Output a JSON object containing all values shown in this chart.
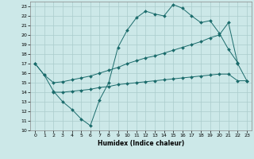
{
  "xlabel": "Humidex (Indice chaleur)",
  "bg_color": "#cce8e8",
  "grid_color": "#aacccc",
  "line_color": "#1a6b6b",
  "xlim": [
    -0.5,
    23.5
  ],
  "ylim": [
    10,
    23.5
  ],
  "xticks": [
    0,
    1,
    2,
    3,
    4,
    5,
    6,
    7,
    8,
    9,
    10,
    11,
    12,
    13,
    14,
    15,
    16,
    17,
    18,
    19,
    20,
    21,
    22,
    23
  ],
  "yticks": [
    10,
    11,
    12,
    13,
    14,
    15,
    16,
    17,
    18,
    19,
    20,
    21,
    22,
    23
  ],
  "line1_x": [
    0,
    1,
    2,
    3,
    4,
    5,
    6,
    7,
    8,
    9,
    10,
    11,
    12,
    13,
    14,
    15,
    16,
    17,
    18,
    19,
    20,
    21,
    22
  ],
  "line1_y": [
    17.0,
    15.8,
    14.1,
    13.0,
    12.2,
    11.2,
    10.5,
    13.2,
    15.0,
    18.7,
    20.5,
    21.8,
    22.5,
    22.2,
    22.0,
    23.2,
    22.8,
    22.0,
    21.3,
    21.5,
    20.2,
    18.5,
    17.1
  ],
  "line2_x": [
    0,
    1,
    2,
    3,
    4,
    5,
    6,
    7,
    8,
    9,
    10,
    11,
    12,
    13,
    14,
    15,
    16,
    17,
    18,
    19,
    20,
    21,
    22,
    23
  ],
  "line2_y": [
    17.0,
    15.8,
    15.0,
    15.1,
    15.3,
    15.5,
    15.7,
    16.0,
    16.3,
    16.6,
    17.0,
    17.3,
    17.6,
    17.8,
    18.1,
    18.4,
    18.7,
    19.0,
    19.3,
    19.7,
    20.0,
    21.3,
    17.0,
    15.2
  ],
  "line3_x": [
    2,
    3,
    4,
    5,
    6,
    7,
    8,
    9,
    10,
    11,
    12,
    13,
    14,
    15,
    16,
    17,
    18,
    19,
    20,
    21,
    22,
    23
  ],
  "line3_y": [
    14.0,
    14.0,
    14.1,
    14.2,
    14.3,
    14.5,
    14.6,
    14.8,
    14.9,
    15.0,
    15.1,
    15.2,
    15.3,
    15.4,
    15.5,
    15.6,
    15.7,
    15.8,
    15.9,
    15.9,
    15.2,
    15.2
  ]
}
